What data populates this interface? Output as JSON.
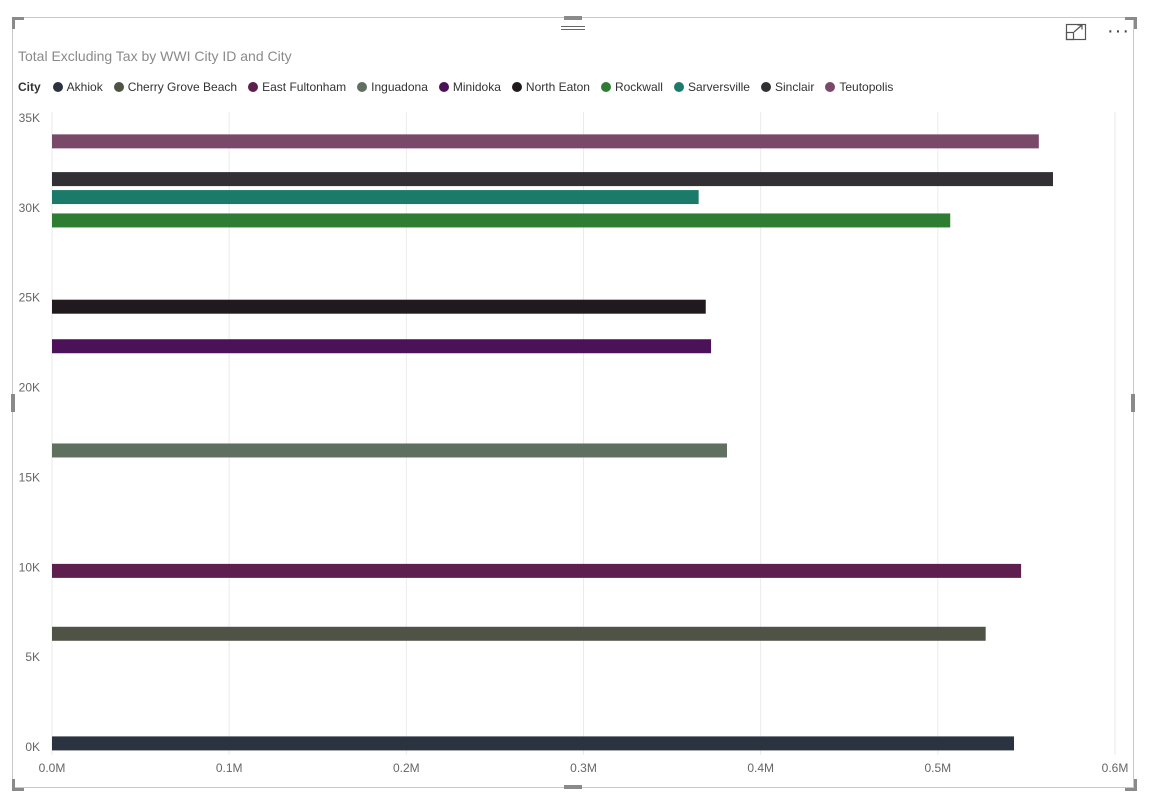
{
  "visual": {
    "title": "Total Excluding Tax by WWI City ID and City",
    "legend_title": "City"
  },
  "chart_data": {
    "type": "bar",
    "orientation": "horizontal",
    "title": "Total Excluding Tax by WWI City ID and City",
    "xlabel": "",
    "ylabel": "",
    "xlim": [
      0,
      0.6
    ],
    "x_unit": "M",
    "ylim": [
      0,
      35
    ],
    "y_unit": "K",
    "x_ticks": [
      "0.0M",
      "0.1M",
      "0.2M",
      "0.3M",
      "0.4M",
      "0.5M",
      "0.6M"
    ],
    "y_ticks": [
      "0K",
      "5K",
      "10K",
      "15K",
      "20K",
      "25K",
      "30K",
      "35K"
    ],
    "grid": true,
    "legend_position": "top-left",
    "series": [
      {
        "name": "Akhiok",
        "color": "#2B3340",
        "wwi_city_id_k": 0.2,
        "total_m": 0.543
      },
      {
        "name": "Cherry Grove Beach",
        "color": "#4E5346",
        "wwi_city_id_k": 6.3,
        "total_m": 0.527
      },
      {
        "name": "East Fultonham",
        "color": "#5E1F4E",
        "wwi_city_id_k": 9.8,
        "total_m": 0.547
      },
      {
        "name": "Inguadona",
        "color": "#607060",
        "wwi_city_id_k": 16.5,
        "total_m": 0.381
      },
      {
        "name": "Minidoka",
        "color": "#4B1259",
        "wwi_city_id_k": 22.3,
        "total_m": 0.372
      },
      {
        "name": "North Eaton",
        "color": "#201A1E",
        "wwi_city_id_k": 24.5,
        "total_m": 0.369
      },
      {
        "name": "Rockwall",
        "color": "#2E7D32",
        "wwi_city_id_k": 29.3,
        "total_m": 0.507
      },
      {
        "name": "Sarversville",
        "color": "#1B7A6A",
        "wwi_city_id_k": 30.6,
        "total_m": 0.365
      },
      {
        "name": "Sinclair",
        "color": "#333035",
        "wwi_city_id_k": 31.6,
        "total_m": 0.565
      },
      {
        "name": "Teutopolis",
        "color": "#7A4868",
        "wwi_city_id_k": 33.7,
        "total_m": 0.557
      }
    ]
  }
}
